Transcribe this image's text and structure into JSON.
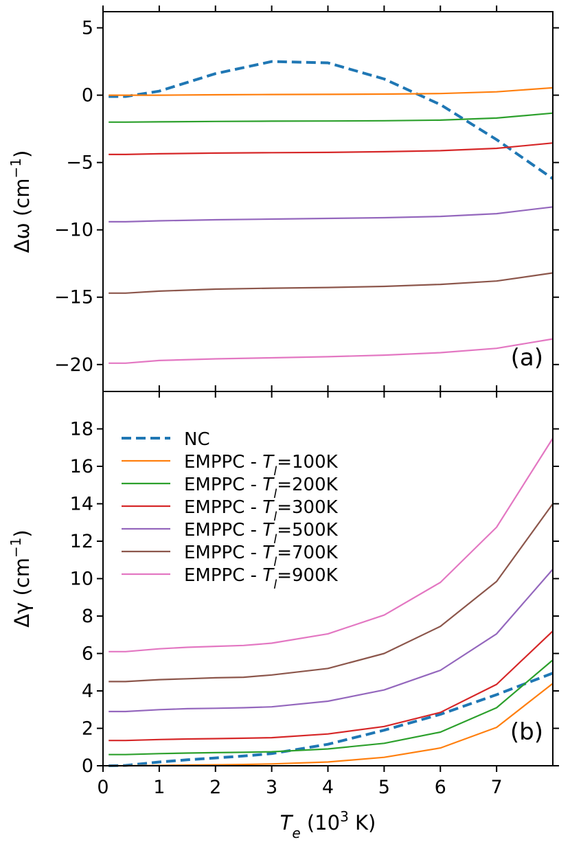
{
  "colors": {
    "nc": "#1f77b4",
    "t100": "#ff7f0e",
    "t200": "#2ca02c",
    "t300": "#d62728",
    "t500": "#9467bd",
    "t700": "#8c564b",
    "t900": "#e377c2"
  },
  "chart_data": [
    {
      "type": "line",
      "panel_label": "(a)",
      "ylabel_prefix": "Δω (cm",
      "ylabel_exp": "−1",
      "ylabel_suffix": ")",
      "xlim": [
        0,
        8
      ],
      "ylim": [
        -22,
        6.2
      ],
      "yticks": [
        5,
        0,
        -5,
        -10,
        -15,
        -20
      ],
      "ytick_labels": [
        "5",
        "0",
        "−5",
        "−10",
        "−15",
        "−20"
      ],
      "x": [
        0.1,
        0.4,
        1,
        2,
        3,
        4,
        5,
        6,
        7,
        8
      ],
      "series": [
        {
          "key": "nc",
          "dashed": true,
          "values": [
            -0.1,
            -0.1,
            0.3,
            1.6,
            2.5,
            2.4,
            1.2,
            -0.7,
            -3.3,
            -6.2
          ]
        },
        {
          "key": "t100",
          "values": [
            0.0,
            0.0,
            0.0,
            0.03,
            0.05,
            0.06,
            0.08,
            0.12,
            0.25,
            0.55
          ]
        },
        {
          "key": "t200",
          "values": [
            -2.0,
            -2.0,
            -1.98,
            -1.95,
            -1.93,
            -1.92,
            -1.9,
            -1.85,
            -1.7,
            -1.33
          ]
        },
        {
          "key": "t300",
          "values": [
            -4.4,
            -4.4,
            -4.35,
            -4.3,
            -4.27,
            -4.25,
            -4.2,
            -4.12,
            -3.95,
            -3.55
          ]
        },
        {
          "key": "t500",
          "values": [
            -9.4,
            -9.4,
            -9.33,
            -9.25,
            -9.2,
            -9.15,
            -9.1,
            -9.0,
            -8.8,
            -8.3
          ]
        },
        {
          "key": "t700",
          "values": [
            -14.7,
            -14.7,
            -14.55,
            -14.4,
            -14.33,
            -14.28,
            -14.2,
            -14.05,
            -13.8,
            -13.2
          ]
        },
        {
          "key": "t900",
          "values": [
            -19.9,
            -19.9,
            -19.7,
            -19.58,
            -19.5,
            -19.42,
            -19.3,
            -19.12,
            -18.8,
            -18.1
          ]
        }
      ]
    },
    {
      "type": "line",
      "panel_label": "(b)",
      "ylabel_prefix": "Δγ (cm",
      "ylabel_exp": "−1",
      "ylabel_suffix": ")",
      "xlabel_prefix": "T",
      "xlabel_sub": "e",
      "xlabel_mid": " (10",
      "xlabel_exp": "3",
      "xlabel_suffix": " K)",
      "xlim": [
        0,
        8
      ],
      "ylim": [
        0,
        20
      ],
      "xticks": [
        0,
        1,
        2,
        3,
        4,
        5,
        6,
        7
      ],
      "xtick_labels": [
        "0",
        "1",
        "2",
        "3",
        "4",
        "5",
        "6",
        "7"
      ],
      "yticks": [
        0,
        2,
        4,
        6,
        8,
        10,
        12,
        14,
        16,
        18
      ],
      "ytick_labels": [
        "0",
        "2",
        "4",
        "6",
        "8",
        "10",
        "12",
        "14",
        "16",
        "18"
      ],
      "x": [
        0.1,
        0.4,
        1,
        1.5,
        2,
        2.5,
        3,
        4,
        5,
        6,
        7,
        8
      ],
      "series": [
        {
          "key": "nc",
          "dashed": true,
          "values": [
            0.0,
            0.02,
            0.2,
            0.32,
            0.42,
            0.52,
            0.65,
            1.15,
            1.9,
            2.75,
            3.8,
            4.95
          ]
        },
        {
          "key": "t100",
          "values": [
            0.0,
            0.0,
            0.02,
            0.04,
            0.05,
            0.07,
            0.1,
            0.2,
            0.45,
            0.95,
            2.05,
            4.4
          ]
        },
        {
          "key": "t200",
          "values": [
            0.6,
            0.6,
            0.65,
            0.68,
            0.7,
            0.72,
            0.75,
            0.9,
            1.2,
            1.8,
            3.1,
            5.65
          ]
        },
        {
          "key": "t300",
          "values": [
            1.35,
            1.35,
            1.4,
            1.43,
            1.45,
            1.47,
            1.5,
            1.7,
            2.1,
            2.85,
            4.35,
            7.2
          ]
        },
        {
          "key": "t500",
          "values": [
            2.9,
            2.9,
            3.0,
            3.05,
            3.07,
            3.1,
            3.15,
            3.45,
            4.05,
            5.1,
            7.05,
            10.5
          ]
        },
        {
          "key": "t700",
          "values": [
            4.5,
            4.5,
            4.6,
            4.65,
            4.7,
            4.73,
            4.85,
            5.2,
            6.0,
            7.45,
            9.85,
            14.0
          ]
        },
        {
          "key": "t900",
          "values": [
            6.1,
            6.1,
            6.25,
            6.33,
            6.38,
            6.43,
            6.55,
            7.05,
            8.05,
            9.8,
            12.75,
            17.5
          ]
        }
      ]
    }
  ],
  "legend": {
    "placement": "upper-left",
    "entries": [
      {
        "key": "nc",
        "dashed": true,
        "label": "NC"
      },
      {
        "key": "t100",
        "prefix": "EMPPC - ",
        "sym": "T",
        "sub": "l",
        "suffix": "=100K"
      },
      {
        "key": "t200",
        "prefix": "EMPPC - ",
        "sym": "T",
        "sub": "l",
        "suffix": "=200K"
      },
      {
        "key": "t300",
        "prefix": "EMPPC - ",
        "sym": "T",
        "sub": "l",
        "suffix": "=300K"
      },
      {
        "key": "t500",
        "prefix": "EMPPC - ",
        "sym": "T",
        "sub": "l",
        "suffix": "=500K"
      },
      {
        "key": "t700",
        "prefix": "EMPPC - ",
        "sym": "T",
        "sub": "l",
        "suffix": "=700K"
      },
      {
        "key": "t900",
        "prefix": "EMPPC - ",
        "sym": "T",
        "sub": "l",
        "suffix": "=900K"
      }
    ]
  }
}
